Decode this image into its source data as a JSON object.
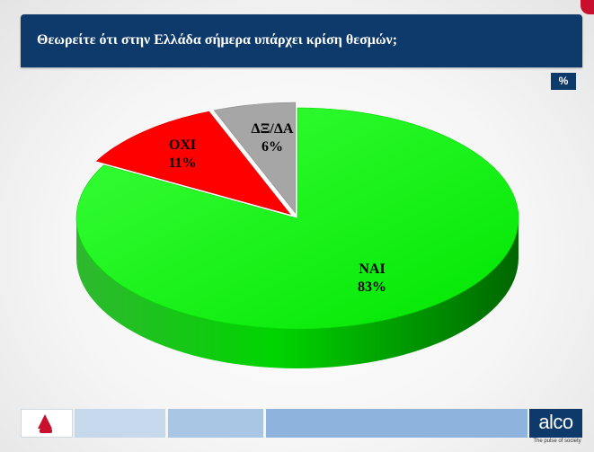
{
  "header": {
    "title": "Θεωρείτε ότι στην Ελλάδα σήμερα υπάρχει κρίση θεσμών;",
    "unit_badge": "%"
  },
  "colors": {
    "title_bar": "#0d3a6b",
    "yes": "#00ff00",
    "no": "#ff0000",
    "dont_know": "#a6a6a6"
  },
  "chart_data": {
    "type": "pie",
    "title": "Θεωρείτε ότι στην Ελλάδα σήμερα υπάρχει κρίση θεσμών;",
    "unit": "%",
    "style": "3d-exploded",
    "slices": [
      {
        "label": "ΝΑΙ",
        "value": 83,
        "value_label": "83%",
        "color": "#00ff00"
      },
      {
        "label": "ΟΧΙ",
        "value": 11,
        "value_label": "11%",
        "color": "#ff0000"
      },
      {
        "label": "ΔΞ/ΔΑ",
        "value": 6,
        "value_label": "6%",
        "color": "#a6a6a6"
      }
    ]
  },
  "footer": {
    "brand": "alco",
    "tagline": "The pulse of society",
    "channel_icon": "alpha-news-logo-icon"
  }
}
